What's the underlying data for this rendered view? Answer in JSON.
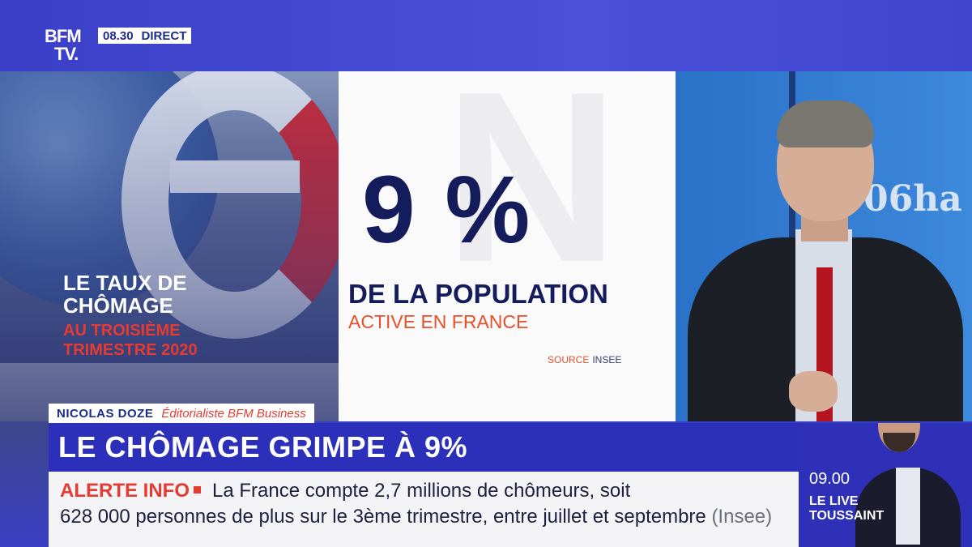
{
  "channel": {
    "logo_line1": "BFM",
    "logo_line2": "TV.",
    "time": "08.30",
    "status": "DIRECT"
  },
  "left_panel": {
    "title": "LE TAUX DE CHÔMAGE",
    "subtitle": "AU TROISIÈME TRIMESTRE 2020"
  },
  "center_panel": {
    "big_value": "9 %",
    "title": "DE LA POPULATION",
    "subtitle": "ACTIVE EN FRANCE",
    "source_label": "SOURCE",
    "source_value": "INSEE"
  },
  "studio": {
    "screen_text": "06ha"
  },
  "name_bar": {
    "name": "NICOLAS DOZE",
    "role": "Éditorialiste BFM Business"
  },
  "headline": "LE CHÔMAGE GRIMPE À 9%",
  "ticker": {
    "alert_label": "ALERTE INFO",
    "line1": "La France compte 2,7 millions de chômeurs, soit",
    "line2": "628 000 personnes de plus sur le 3ème trimestre, entre juillet et septembre",
    "line2_source": "(Insee)"
  },
  "next_program": {
    "time": "09.00",
    "title_line1": "LE LIVE",
    "title_line2": "TOUSSAINT"
  },
  "colors": {
    "brand_blue": "#2b2fb9",
    "navy": "#141c5c",
    "accent_red": "#e63b32",
    "accent_orange": "#e6502a"
  }
}
